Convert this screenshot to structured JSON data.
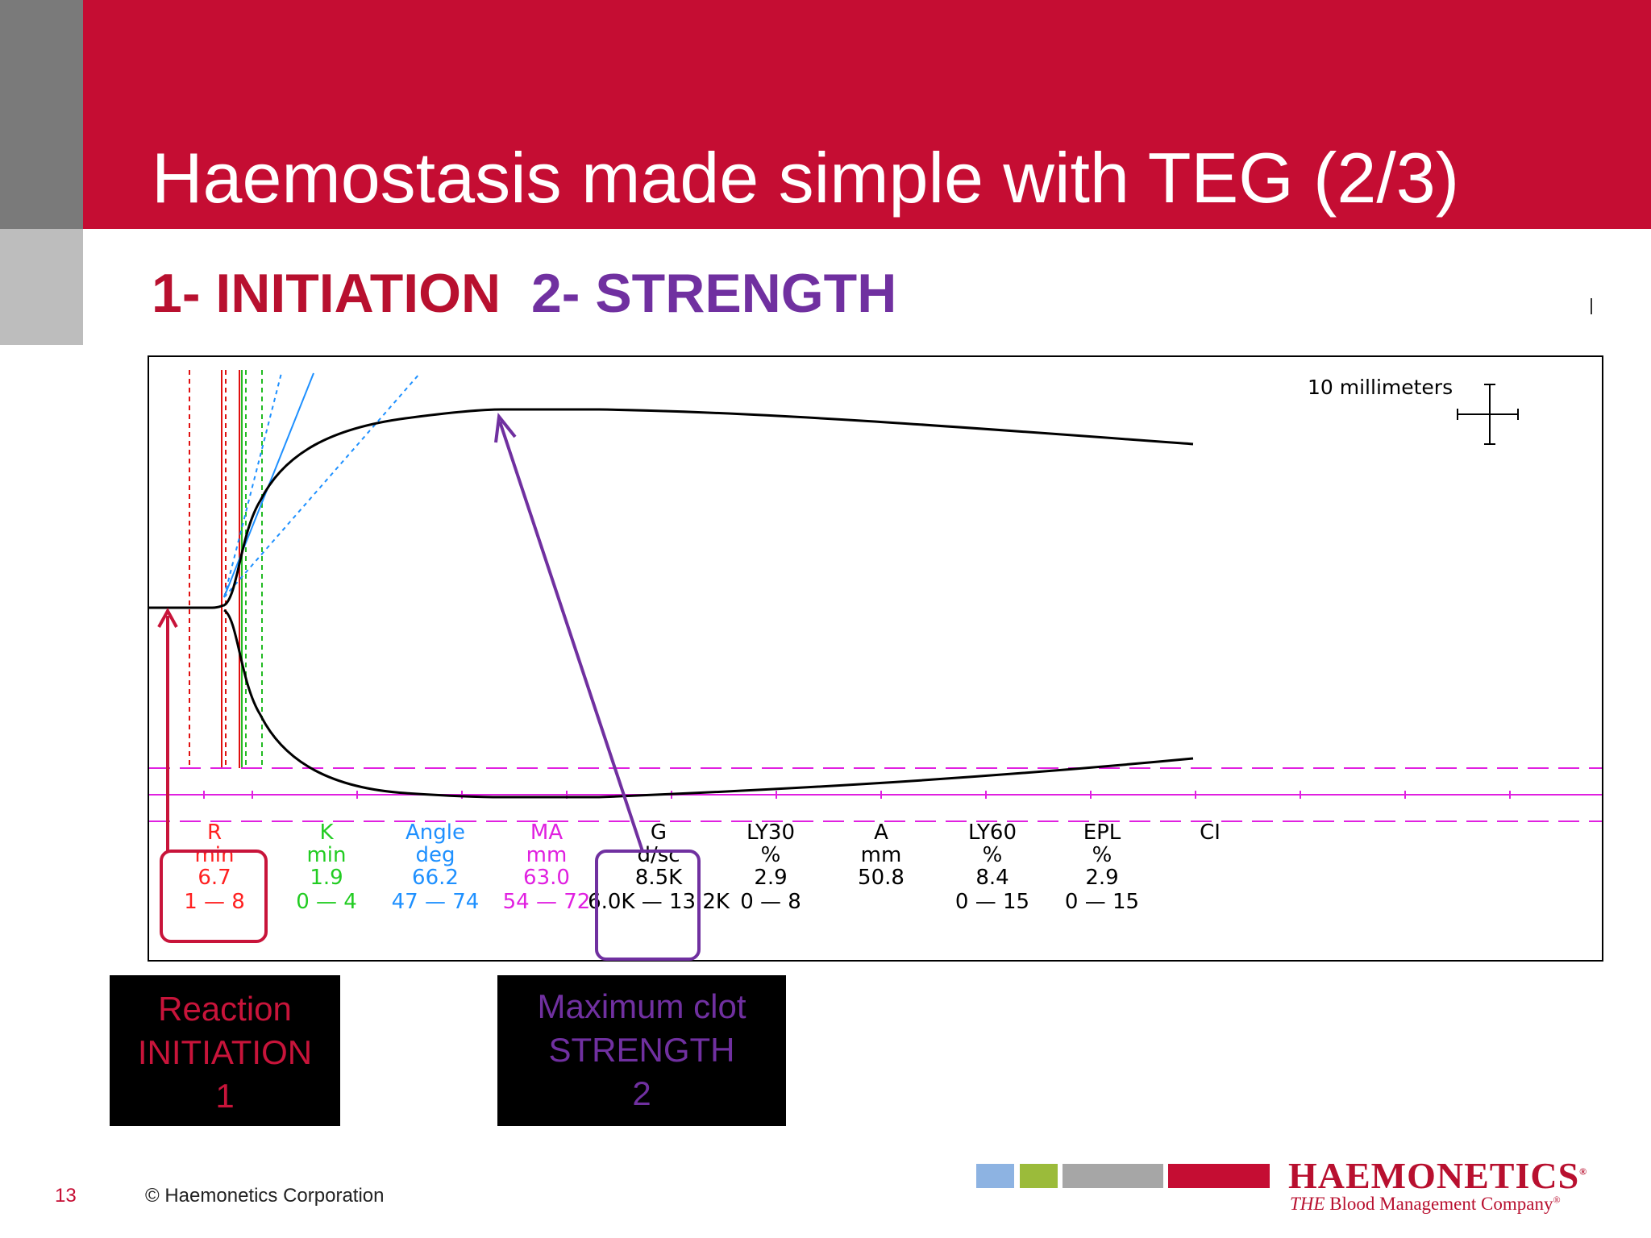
{
  "slide": {
    "title": "Haemostasis made simple with TEG (2/3)",
    "subtitle_part1": "1- INITIATION",
    "subtitle_part2": "2- STRENGTH",
    "slide_number": "13",
    "copyright": "© Haemonetics Corporation"
  },
  "teg": {
    "scale_label": "10 millimeters",
    "params": [
      {
        "name": "R",
        "unit": "min",
        "value": "6.7",
        "range": "1 — 8",
        "color": "#ff2020"
      },
      {
        "name": "K",
        "unit": "min",
        "value": "1.9",
        "range": "0 — 4",
        "color": "#22cc22"
      },
      {
        "name": "Angle",
        "unit": "deg",
        "value": "66.2",
        "range": "47 — 74",
        "color": "#1e90ff"
      },
      {
        "name": "MA",
        "unit": "mm",
        "value": "63.0",
        "range": "54 — 72",
        "color": "#e020e0"
      },
      {
        "name": "G",
        "unit": "d/sc",
        "value": "8.5K",
        "range": "6.0K — 13.2K",
        "color": "#000000"
      },
      {
        "name": "LY30",
        "unit": "%",
        "value": "2.9",
        "range": "0 — 8",
        "color": "#000000"
      },
      {
        "name": "A",
        "unit": "mm",
        "value": "50.8",
        "range": "",
        "color": "#000000"
      },
      {
        "name": "LY60",
        "unit": "%",
        "value": "8.4",
        "range": "0 — 15",
        "color": "#000000"
      },
      {
        "name": "EPL",
        "unit": "%",
        "value": "2.9",
        "range": "0 — 15",
        "color": "#000000"
      },
      {
        "name": "CI",
        "unit": "",
        "value": "",
        "range": "",
        "color": "#000000"
      }
    ]
  },
  "callouts": {
    "reaction": {
      "line1": "Reaction",
      "line2": "INITIATION",
      "line3": "1",
      "color": "#c8143a"
    },
    "strength": {
      "line1": "Maximum  clot",
      "line2": "STRENGTH",
      "line3": "2",
      "color": "#7030a0"
    }
  },
  "logo": {
    "name": "HAEMONETICS",
    "tagline_italic": "THE",
    "tagline_rest": "Blood Management Company",
    "colors": [
      "#8db3e2",
      "#9bbb3a",
      "#a6a6a6",
      "#c50d33"
    ]
  },
  "colors": {
    "brand_red": "#c50d33",
    "strength_purple": "#7030a0"
  }
}
